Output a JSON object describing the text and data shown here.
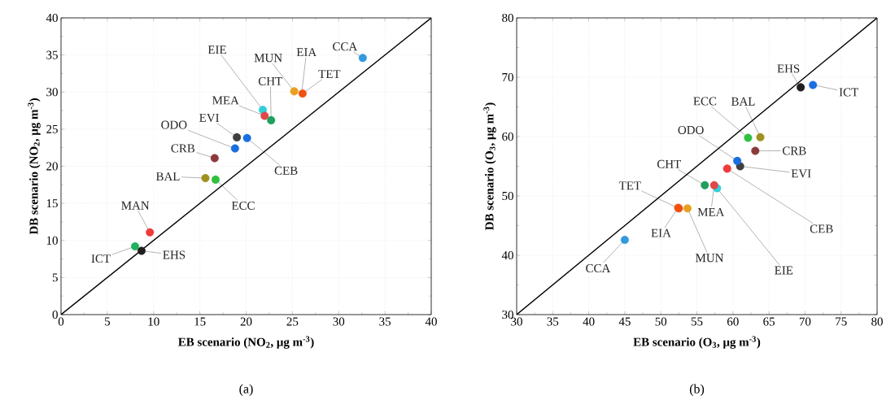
{
  "chart_data": [
    {
      "type": "scatter",
      "title": "(a)",
      "xlabel": "EB scenario (NO$_{2}$, μg m$^{-3}$)",
      "ylabel": "DB scenario (NO$_{2}$, μg m$^{-3}$)",
      "xlim": [
        0,
        40
      ],
      "ylim": [
        0,
        40
      ],
      "xticks": [
        0,
        5,
        10,
        15,
        20,
        25,
        30,
        35,
        40
      ],
      "yticks": [
        0,
        5,
        10,
        15,
        20,
        25,
        30,
        35,
        40
      ],
      "grid": true,
      "series": [
        {
          "marker": "circle",
          "x": [
            32.6,
            25.2,
            26.0,
            26.1,
            21.8,
            22.0,
            22.7,
            19.0,
            20.1,
            18.8,
            16.6,
            15.6,
            16.7,
            9.6,
            8.0,
            8.7
          ],
          "values": [
            34.6,
            30.1,
            null,
            29.8,
            27.6,
            26.8,
            26.2,
            23.9,
            23.8,
            22.4,
            21.1,
            18.4,
            18.2,
            11.1,
            9.2,
            8.6
          ],
          "colors": [
            "#3399dd",
            "#e8a020",
            "#f06020",
            "#f05010",
            "#30d0d8",
            "#e04848",
            "#20a060",
            "#404040",
            "#1a6ee0",
            "#1a6ee0",
            "#8b3a3a",
            "#a09020",
            "#30c040",
            "#ee3b3b",
            "#20b060",
            "#202020"
          ]
        },
        {
          "type": "line",
          "marker": "none",
          "x": [
            0,
            40
          ],
          "values": [
            0,
            40
          ],
          "color": "#000000"
        }
      ],
      "annotations": [
        {
          "text": "CCA",
          "x": 32.6,
          "y": 34.6
        },
        {
          "text": "MUN",
          "x": 25.2,
          "y": 30.1
        },
        {
          "text": "EIA",
          "x": 26.0,
          "y": 29.9
        },
        {
          "text": "TET",
          "x": 26.1,
          "y": 29.8
        },
        {
          "text": "EIE",
          "x": 21.8,
          "y": 27.6
        },
        {
          "text": "MEA",
          "x": 22.0,
          "y": 26.8
        },
        {
          "text": "CHT",
          "x": 22.7,
          "y": 26.2
        },
        {
          "text": "EVI",
          "x": 19.0,
          "y": 23.9
        },
        {
          "text": "CEB",
          "x": 20.1,
          "y": 23.8
        },
        {
          "text": "ODO",
          "x": 18.8,
          "y": 22.4
        },
        {
          "text": "CRB",
          "x": 16.6,
          "y": 21.1
        },
        {
          "text": "BAL",
          "x": 15.6,
          "y": 18.4
        },
        {
          "text": "ECC",
          "x": 16.7,
          "y": 18.2
        },
        {
          "text": "MAN",
          "x": 9.6,
          "y": 11.1
        },
        {
          "text": "ICT",
          "x": 8.0,
          "y": 9.2
        },
        {
          "text": "EHS",
          "x": 8.7,
          "y": 8.6
        }
      ]
    },
    {
      "type": "scatter",
      "title": "(b)",
      "xlabel": "EB scenario (O$_{3}$, μg m$^{-3}$)",
      "ylabel": "DB scenario (O$_{3}$, μg m$^{-3}$)",
      "xlim": [
        30,
        80
      ],
      "ylim": [
        30,
        80
      ],
      "xticks": [
        30,
        35,
        40,
        45,
        50,
        55,
        60,
        65,
        70,
        75,
        80
      ],
      "yticks": [
        30,
        40,
        50,
        60,
        70,
        80
      ],
      "grid": true,
      "series": [
        {
          "marker": "circle",
          "x": [
            45.0,
            53.7,
            52.4,
            52.5,
            57.8,
            57.4,
            56.1,
            61.0,
            59.2,
            60.6,
            63.1,
            63.8,
            62.1,
            71.1,
            69.4
          ],
          "values": [
            42.6,
            47.9,
            48.0,
            47.9,
            51.3,
            51.8,
            51.8,
            55.0,
            54.6,
            55.9,
            57.6,
            59.9,
            59.8,
            68.7,
            68.3
          ],
          "colors": [
            "#3399dd",
            "#e8a020",
            "#f06020",
            "#f05010",
            "#30d0d8",
            "#e04848",
            "#20a060",
            "#404040",
            "#ee3b3b",
            "#1a6ee0",
            "#8b3a3a",
            "#a09020",
            "#30c040",
            "#1a6ee0",
            "#202020"
          ]
        },
        {
          "type": "line",
          "marker": "none",
          "x": [
            30,
            80
          ],
          "values": [
            30,
            80
          ],
          "color": "#000000"
        }
      ],
      "annotations": [
        {
          "text": "CCA",
          "x": 45.0,
          "y": 42.6
        },
        {
          "text": "MUN",
          "x": 53.7,
          "y": 47.9
        },
        {
          "text": "EIA",
          "x": 52.4,
          "y": 48.0
        },
        {
          "text": "TET",
          "x": 52.5,
          "y": 47.9
        },
        {
          "text": "EIE",
          "x": 57.8,
          "y": 51.3
        },
        {
          "text": "MEA",
          "x": 57.4,
          "y": 51.8
        },
        {
          "text": "CHT",
          "x": 56.1,
          "y": 51.8
        },
        {
          "text": "EVI",
          "x": 61.0,
          "y": 55.0
        },
        {
          "text": "CEB",
          "x": 59.2,
          "y": 54.6
        },
        {
          "text": "ODO",
          "x": 60.6,
          "y": 55.9
        },
        {
          "text": "CRB",
          "x": 63.1,
          "y": 57.6
        },
        {
          "text": "BAL",
          "x": 63.8,
          "y": 59.9
        },
        {
          "text": "ECC",
          "x": 62.1,
          "y": 59.8
        },
        {
          "text": "ICT",
          "x": 71.1,
          "y": 68.7
        },
        {
          "text": "EHS",
          "x": 69.4,
          "y": 68.3
        }
      ]
    }
  ]
}
